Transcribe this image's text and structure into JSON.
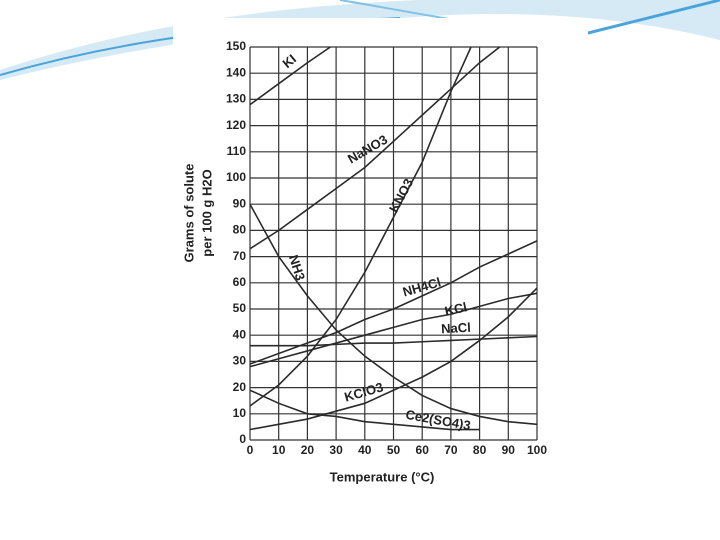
{
  "chart_data": {
    "type": "line",
    "xlabel": "Temperature (°C)",
    "ylabel": [
      "Grams of solute",
      "per 100 g H2O"
    ],
    "xlim": [
      0,
      100
    ],
    "xticks": [
      0,
      10,
      20,
      30,
      40,
      50,
      60,
      70,
      80,
      90,
      100
    ],
    "ylim": [
      0,
      150
    ],
    "yticks": [
      0,
      10,
      20,
      30,
      40,
      50,
      60,
      70,
      80,
      90,
      100,
      110,
      120,
      130,
      140,
      150
    ],
    "grid": true,
    "color": "#2b2b2b",
    "series": [
      {
        "name": "KI",
        "x": [
          0,
          10,
          20,
          28
        ],
        "values": [
          128,
          136,
          144,
          150
        ]
      },
      {
        "name": "NaNO3",
        "x": [
          0,
          10,
          20,
          30,
          40,
          50,
          60,
          70,
          80,
          87
        ],
        "values": [
          73,
          80,
          88,
          96,
          104,
          114,
          124,
          134,
          144,
          150
        ]
      },
      {
        "name": "KNO3",
        "x": [
          0,
          10,
          20,
          30,
          40,
          50,
          60,
          70,
          77
        ],
        "values": [
          13,
          21,
          32,
          46,
          64,
          85,
          106,
          133,
          150
        ]
      },
      {
        "name": "NH3",
        "x": [
          0,
          10,
          20,
          30,
          40,
          50,
          60,
          70,
          80,
          90,
          100
        ],
        "values": [
          90,
          70,
          55,
          42,
          32,
          24,
          17,
          12,
          9,
          7,
          6
        ]
      },
      {
        "name": "NH4Cl",
        "x": [
          0,
          10,
          20,
          30,
          40,
          50,
          60,
          70,
          80,
          90,
          100
        ],
        "values": [
          29,
          33,
          37,
          41,
          46,
          50,
          55,
          60,
          66,
          71,
          76
        ]
      },
      {
        "name": "KCl",
        "x": [
          0,
          10,
          20,
          30,
          40,
          50,
          60,
          70,
          80,
          90,
          100
        ],
        "values": [
          28,
          31,
          34,
          37,
          40,
          43,
          46,
          48,
          51,
          54,
          56
        ]
      },
      {
        "name": "NaCl",
        "x": [
          0,
          10,
          20,
          30,
          40,
          50,
          60,
          70,
          80,
          90,
          100
        ],
        "values": [
          36,
          36,
          36,
          36.5,
          37,
          37,
          37.5,
          38,
          38.5,
          39,
          39.5
        ]
      },
      {
        "name": "KClO3",
        "x": [
          0,
          10,
          20,
          30,
          40,
          50,
          60,
          70,
          80,
          90,
          100
        ],
        "values": [
          4,
          6,
          8,
          11,
          14,
          19,
          24,
          30,
          38,
          47,
          58
        ]
      },
      {
        "name": "Ce2(SO4)3",
        "x": [
          0,
          10,
          20,
          30,
          40,
          50,
          60,
          70,
          80
        ],
        "values": [
          19,
          14,
          10,
          9,
          7,
          6,
          5,
          4,
          4
        ]
      }
    ]
  }
}
